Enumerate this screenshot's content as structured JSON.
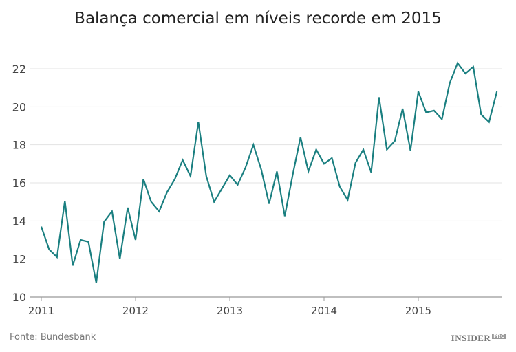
{
  "chart_data": {
    "type": "line",
    "title": "Balança comercial em níveis recorde em 2015",
    "xlabel": "",
    "ylabel": "",
    "x_start": "2011-01",
    "x_frequency": "monthly",
    "x_ticks": [
      "2011",
      "2012",
      "2013",
      "2014",
      "2015"
    ],
    "y_ticks": [
      10,
      12,
      14,
      16,
      18,
      20,
      22
    ],
    "ylim": [
      10,
      23
    ],
    "grid": true,
    "line_color": "#1a7f80",
    "series": [
      {
        "values": [
          13.7,
          12.5,
          12.1,
          15.05,
          11.65,
          13.0,
          12.9,
          10.75,
          13.95,
          14.5,
          12.0,
          14.7,
          13.0,
          16.2,
          15.0,
          14.5,
          15.5,
          16.2,
          17.2,
          16.35,
          19.2,
          16.35,
          15.0,
          15.7,
          16.4,
          15.9,
          16.8,
          18.0,
          16.7,
          14.9,
          16.6,
          14.25,
          16.4,
          18.4,
          16.6,
          17.75,
          17.0,
          17.3,
          15.8,
          15.1,
          17.05,
          17.75,
          16.55,
          20.5,
          17.75,
          18.2,
          19.9,
          17.7,
          20.8,
          19.7,
          19.8,
          19.35,
          21.25,
          22.3,
          21.75,
          22.1,
          19.6,
          19.2,
          20.8
        ]
      }
    ]
  },
  "footer": {
    "source": "Fonte: Bundesbank",
    "logo_text": "INSIDER",
    "logo_badge": "PRO"
  }
}
